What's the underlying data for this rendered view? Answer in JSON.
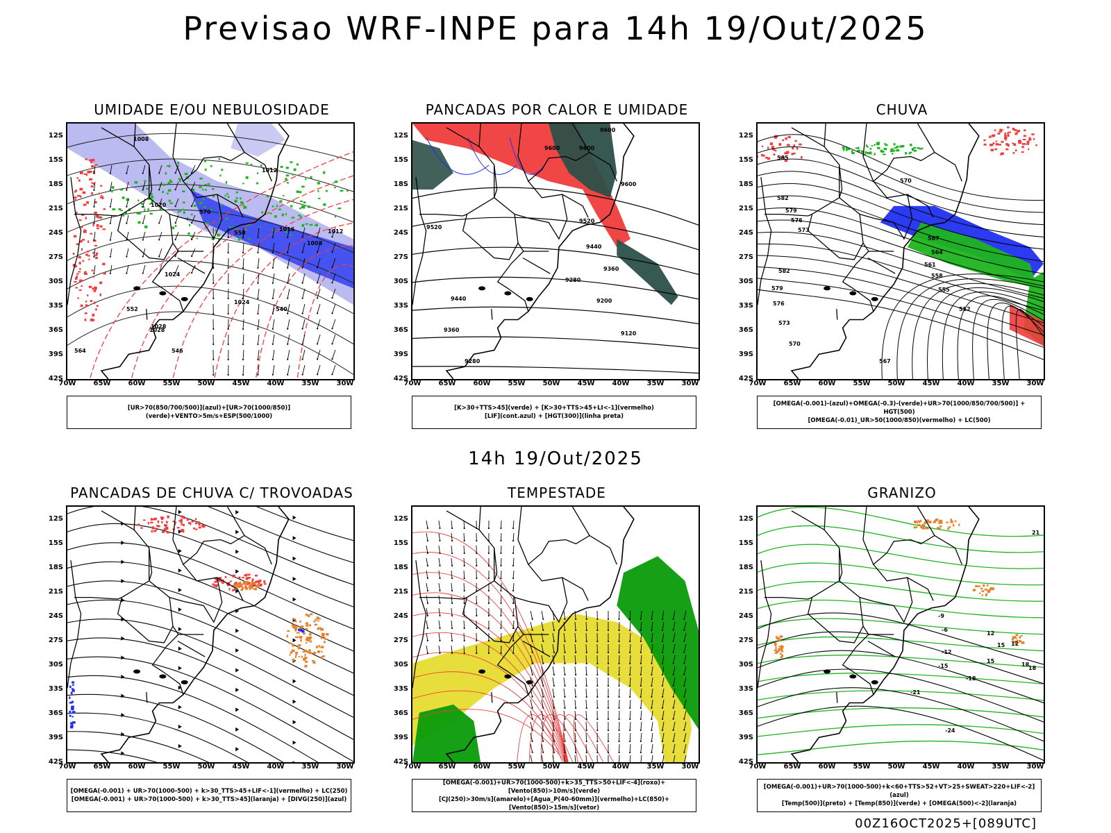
{
  "header": {
    "title": "Previsao WRF-INPE  para 14h 19/Out/2025"
  },
  "middle_label": "14h 19/Out/2025",
  "footer": "00Z16OCT2025+[089UTC]",
  "axes": {
    "y_labels": [
      "12S",
      "15S",
      "18S",
      "21S",
      "24S",
      "27S",
      "30S",
      "33S",
      "36S",
      "39S",
      "42S"
    ],
    "x_labels": [
      "70W",
      "65W",
      "60W",
      "55W",
      "50W",
      "45W",
      "40W",
      "35W",
      "30W"
    ]
  },
  "panels": [
    {
      "id": "umidade",
      "title": "UMIDADE E/OU NEBULOSIDADE",
      "legend": [
        "[UR>70(850/700/500)](azul)+[UR>70(1000/850)](verde)+VENTO>5m/s+ESP(500/1000)"
      ],
      "contour_labels": [
        "1008",
        "1012",
        "1016",
        "1020",
        "1024",
        "1028",
        "1008",
        "1012",
        "1024",
        "1028",
        "552",
        "564",
        "540",
        "546",
        "570",
        "558"
      ]
    },
    {
      "id": "pancadas_calor",
      "title": "PANCADAS POR CALOR E UMIDADE",
      "legend": [
        "[K>30+TTS>45](verde) + [K>30+TTS>45+LI<-1](vermelho)",
        "[LIF](cont.azul) + [HGT(300)](linha preta)"
      ],
      "contour_labels": [
        "9600",
        "9600",
        "9600",
        "9600",
        "9520",
        "9520",
        "9440",
        "9440",
        "9360",
        "9360",
        "9280",
        "9280",
        "9200",
        "9120"
      ]
    },
    {
      "id": "chuva",
      "title": "CHUVA",
      "legend": [
        "[OMEGA(-0.001)-(azul)+OMEGA(-0.3)-(verde)+UR>70(1000/850/700/500)] + HGT(500)",
        "[OMEGA(-0.01)_UR>50(1000/850)(vermelho) + LC(500)"
      ],
      "contour_labels": [
        "585",
        "582",
        "579",
        "576",
        "573",
        "570",
        "567",
        "564",
        "561",
        "558",
        "555",
        "552",
        "582",
        "579",
        "576",
        "573",
        "570",
        "567"
      ]
    },
    {
      "id": "trovoadas",
      "title": "PANCADAS DE CHUVA C/ TROVOADAS",
      "legend": [
        "[OMEGA(-0.001) + UR>70(1000-500) + k>30_TTS>45+LIF<-1](vermelho) + LC(250)",
        "[OMEGA(-0.001) + UR>70(1000-500) + k>30_TTS>45](laranja) + [DIVG(250)](azul)"
      ],
      "contour_labels": []
    },
    {
      "id": "tempestade",
      "title": "TEMPESTADE",
      "legend": [
        "[OMEGA(-0.001)+UR>70(1000-500)+k>35_TTS>50+LIF<-4](roxo)+[Vento(850)>10m/s](verde)",
        "[CJ(250)>30m/s](amarelo)+[Agua_P(40-60mm)](vermelho)+LC(850)+[Vento(850)>15m/s](vetor)"
      ],
      "contour_labels": []
    },
    {
      "id": "granizo",
      "title": "GRANIZO",
      "legend": [
        "[OMEGA(-0.001)+UR>70(1000-500)+k<60+TTS>52+VT>25+SWEAT>220+LIF<-2](azul)",
        "[Temp(500)](preto) + [Temp(850)](verde) + [OMEGA(500)<-2](laranja)"
      ],
      "contour_labels": [
        "-12",
        "-15",
        "-18",
        "-21",
        "-24",
        "-9",
        "-6",
        "12",
        "15",
        "18",
        "21",
        "12",
        "15",
        "18"
      ]
    }
  ],
  "colors": {
    "red": "#f03c3c",
    "green": "#1db41d",
    "blue": "#2030f0",
    "lightblue": "#b4b4f0",
    "yellow": "#e6dc32",
    "orange": "#e6822d",
    "teal": "#2c5048",
    "darkgreen": "#0a9b0a"
  }
}
